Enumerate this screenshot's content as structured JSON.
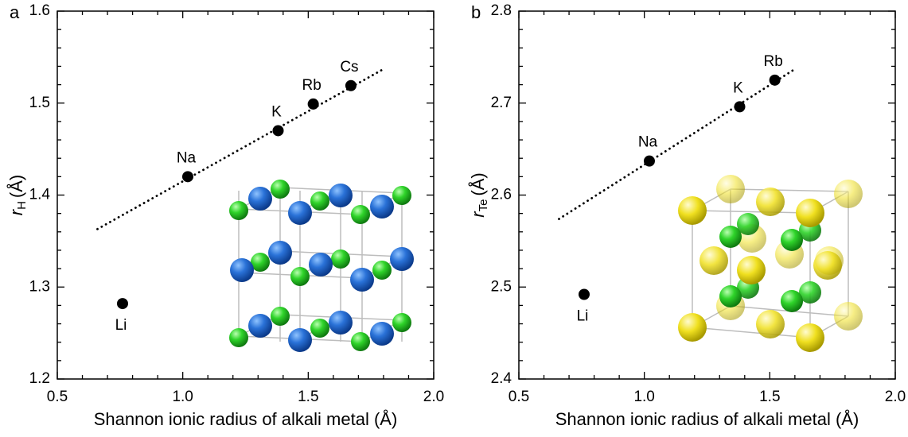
{
  "chart_data": [
    {
      "type": "scatter",
      "panel_label": "a",
      "xlabel": "Shannon ionic radius of alkali metal (Å)",
      "ylabel": {
        "symbol": "r",
        "subscript": "H",
        "unit": "(Å)"
      },
      "x": [
        0.76,
        1.02,
        1.38,
        1.52,
        1.67
      ],
      "values": [
        1.282,
        1.42,
        1.47,
        1.499,
        1.519
      ],
      "point_labels": [
        "Li",
        "Na",
        "K",
        "Rb",
        "Cs"
      ],
      "color": "#000000",
      "fit": {
        "x": [
          0.66,
          1.8
        ],
        "values": [
          1.363,
          1.537
        ]
      },
      "xlim": [
        0.5,
        2.0
      ],
      "ylim": [
        1.2,
        1.6
      ],
      "xticks": [
        0.5,
        {
          "value": 1.0,
          "label": "1.0"
        },
        1.5,
        {
          "value": 2.0,
          "label": "2.0"
        }
      ],
      "yticks": [
        1.2,
        1.3,
        1.4,
        1.5,
        1.6
      ],
      "xminorticks": [
        0.6,
        0.7,
        0.8,
        0.9,
        1.1,
        1.2,
        1.3,
        1.4,
        1.6,
        1.7,
        1.8,
        1.9
      ],
      "yminorticks": [
        1.22,
        1.24,
        1.26,
        1.28,
        1.32,
        1.34,
        1.36,
        1.38,
        1.42,
        1.44,
        1.46,
        1.48,
        1.52,
        1.54,
        1.56,
        1.58
      ]
    },
    {
      "type": "scatter",
      "panel_label": "b",
      "xlabel": "Shannon ionic radius of alkali metal (Å)",
      "ylabel": {
        "symbol": "r",
        "subscript": "Te",
        "unit": "(Å)"
      },
      "x": [
        0.76,
        1.02,
        1.38,
        1.52
      ],
      "values": [
        2.492,
        2.637,
        2.696,
        2.725
      ],
      "point_labels": [
        "Li",
        "Na",
        "K",
        "Rb"
      ],
      "color": "#000000",
      "fit": {
        "x": [
          0.66,
          1.6
        ],
        "values": [
          2.574,
          2.737
        ]
      },
      "xlim": [
        0.5,
        2.0
      ],
      "ylim": [
        2.4,
        2.8
      ],
      "xticks": [
        0.5,
        {
          "value": 1.0,
          "label": "1.0"
        },
        1.5,
        {
          "value": 2.0,
          "label": "2.0"
        }
      ],
      "yticks": [
        2.4,
        2.5,
        2.6,
        2.7,
        2.8
      ],
      "xminorticks": [
        0.6,
        0.7,
        0.8,
        0.9,
        1.1,
        1.2,
        1.3,
        1.4,
        1.6,
        1.7,
        1.8,
        1.9
      ],
      "yminorticks": [
        2.42,
        2.44,
        2.46,
        2.48,
        2.52,
        2.54,
        2.56,
        2.58,
        2.62,
        2.64,
        2.66,
        2.68,
        2.72,
        2.74,
        2.76,
        2.78
      ]
    }
  ]
}
